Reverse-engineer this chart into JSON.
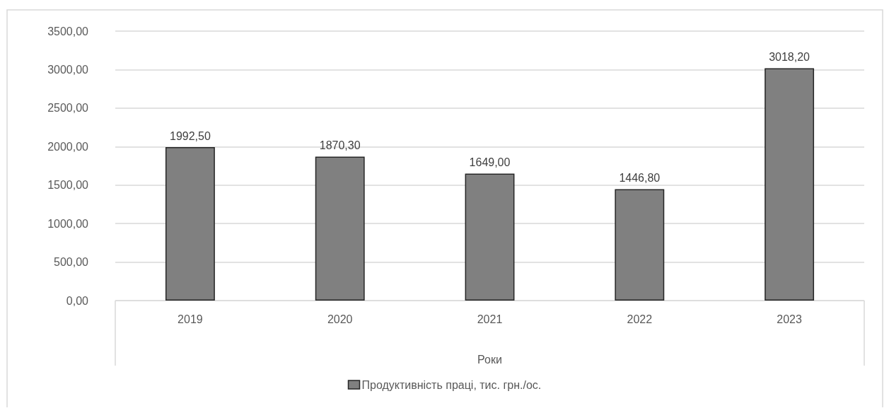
{
  "chart_data": {
    "type": "bar",
    "categories": [
      "2019",
      "2020",
      "2021",
      "2022",
      "2023"
    ],
    "series": [
      {
        "name": "Продуктивність праці, тис. грн./ос.",
        "color": "#808080",
        "values": [
          1992.5,
          1870.3,
          1649.0,
          1446.8,
          3018.2
        ],
        "value_labels": [
          "1992,50",
          "1870,30",
          "1649,00",
          "1446,80",
          "3018,20"
        ]
      }
    ],
    "xlabel": "Роки",
    "ylim": [
      0,
      3500
    ],
    "yticks": [
      {
        "value": 0,
        "label": "0,00"
      },
      {
        "value": 500,
        "label": "500,00"
      },
      {
        "value": 1000,
        "label": "1000,00"
      },
      {
        "value": 1500,
        "label": "1500,00"
      },
      {
        "value": 2000,
        "label": "2000,00"
      },
      {
        "value": 2500,
        "label": "2500,00"
      },
      {
        "value": 3000,
        "label": "3000,00"
      },
      {
        "value": 3500,
        "label": "3500,00"
      }
    ],
    "grid": "y",
    "legend": "bottom"
  }
}
